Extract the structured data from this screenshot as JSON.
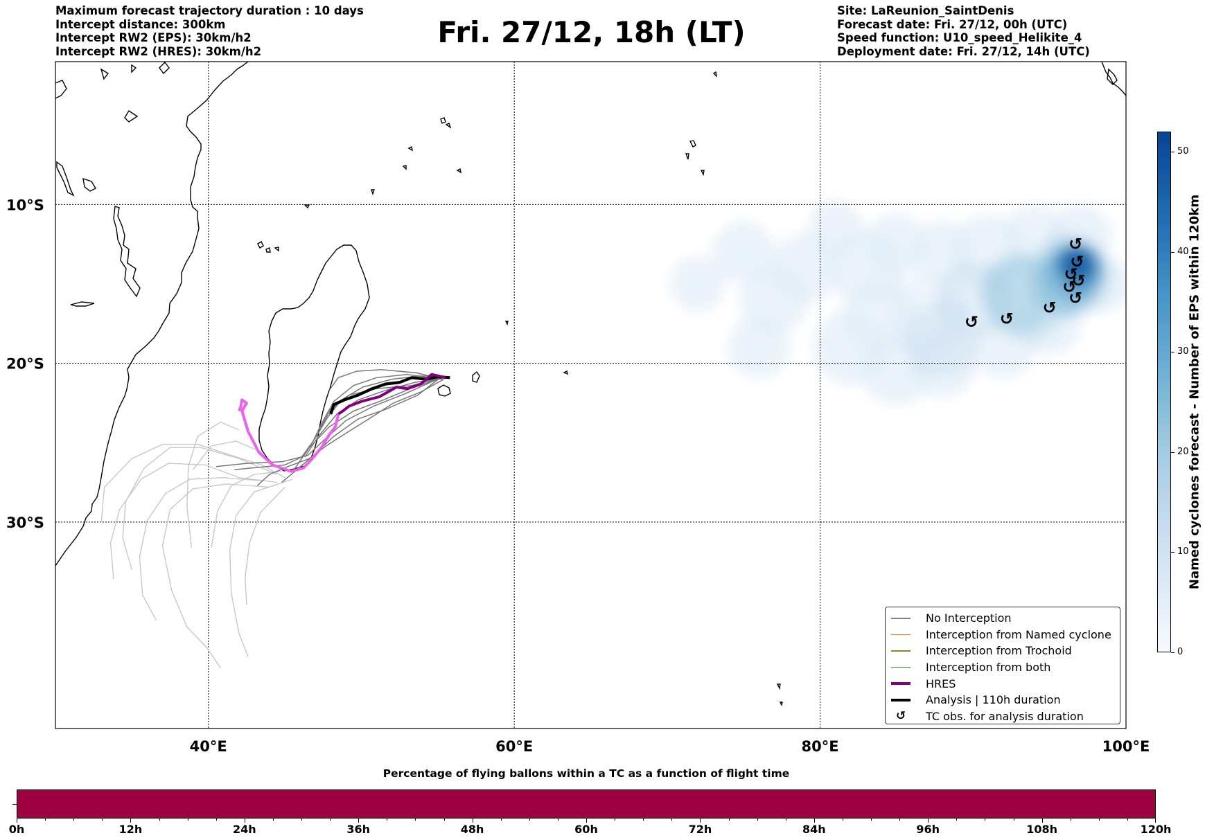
{
  "header": {
    "title": "Fri. 27/12, 18h (LT)",
    "left_info": [
      "Maximum forecast trajectory duration : 10 days",
      "Intercept distance: 300km",
      "Intercept RW2 (EPS):  30km/h2",
      "Intercept RW2 (HRES): 30km/h2"
    ],
    "right_info": [
      "Site: LaReunion_SaintDenis",
      "Forecast date: Fri. 27/12, 00h (UTC)",
      "Speed function: U10_speed_Helikite_4",
      "Deployment date: Fri. 27/12, 14h (UTC)"
    ]
  },
  "map": {
    "lon_range": [
      30,
      100
    ],
    "lat_range": [
      -1,
      -43
    ],
    "lat_labels": [
      "10°S",
      "20°S",
      "30°S"
    ],
    "lon_labels": [
      "40°E",
      "60°E",
      "80°E",
      "100°E"
    ],
    "release_site": {
      "lon": 55.5,
      "lat": -20.9
    },
    "hres_track": [
      [
        55.5,
        -20.9
      ],
      [
        54.6,
        -20.7
      ],
      [
        53.9,
        -21.3
      ],
      [
        53.0,
        -21.6
      ],
      [
        52.3,
        -21.5
      ],
      [
        51.2,
        -22.1
      ],
      [
        50.0,
        -22.4
      ],
      [
        49.2,
        -22.7
      ],
      [
        48.8,
        -23.0
      ],
      [
        48.5,
        -23.2
      ],
      [
        48.3,
        -24.0
      ],
      [
        47.9,
        -24.5
      ],
      [
        47.4,
        -25.3
      ],
      [
        46.8,
        -26.0
      ],
      [
        46.2,
        -26.6
      ],
      [
        45.4,
        -26.8
      ],
      [
        44.2,
        -26.4
      ],
      [
        43.3,
        -25.6
      ],
      [
        42.6,
        -24.3
      ],
      [
        42.2,
        -23.0
      ],
      [
        42.5,
        -22.5
      ],
      [
        42.2,
        -22.3
      ],
      [
        42.1,
        -22.8
      ],
      [
        42.0,
        -23.0
      ]
    ],
    "analysis_track": [
      [
        55.8,
        -20.9
      ],
      [
        55.0,
        -20.85
      ],
      [
        54.2,
        -21.0
      ],
      [
        53.3,
        -20.9
      ],
      [
        52.5,
        -21.2
      ],
      [
        51.6,
        -21.3
      ],
      [
        50.7,
        -21.6
      ],
      [
        49.8,
        -22.0
      ],
      [
        48.9,
        -22.3
      ],
      [
        48.2,
        -22.6
      ],
      [
        48.0,
        -23.2
      ]
    ],
    "eps_tracks_near": [
      [
        [
          55.4,
          -20.9
        ],
        [
          53.5,
          -21.2
        ],
        [
          51.6,
          -21.7
        ],
        [
          49.8,
          -22.3
        ],
        [
          48.4,
          -23.2
        ],
        [
          47.2,
          -24.6
        ],
        [
          46.3,
          -25.9
        ]
      ],
      [
        [
          55.3,
          -20.9
        ],
        [
          53.2,
          -21.6
        ],
        [
          51.2,
          -22.4
        ],
        [
          49.5,
          -23.0
        ],
        [
          47.9,
          -24.0
        ],
        [
          46.6,
          -25.3
        ],
        [
          45.6,
          -26.7
        ]
      ],
      [
        [
          55.2,
          -21.0
        ],
        [
          53.0,
          -20.7
        ],
        [
          51.0,
          -20.9
        ],
        [
          49.5,
          -21.4
        ],
        [
          48.2,
          -22.4
        ],
        [
          47.4,
          -23.8
        ],
        [
          46.8,
          -25.0
        ]
      ],
      [
        [
          55.3,
          -20.8
        ],
        [
          53.7,
          -22.0
        ],
        [
          51.6,
          -22.9
        ],
        [
          49.8,
          -23.5
        ],
        [
          48.2,
          -24.6
        ],
        [
          47.0,
          -25.7
        ],
        [
          45.9,
          -26.6
        ],
        [
          44.8,
          -27.5
        ]
      ],
      [
        [
          55.3,
          -21.0
        ],
        [
          53.6,
          -20.6
        ],
        [
          51.3,
          -20.4
        ],
        [
          49.7,
          -20.5
        ],
        [
          48.5,
          -20.9
        ],
        [
          47.9,
          -21.7
        ]
      ],
      [
        [
          55.4,
          -21.0
        ],
        [
          53.9,
          -21.8
        ],
        [
          52.1,
          -22.5
        ],
        [
          50.5,
          -23.5
        ],
        [
          49.0,
          -24.4
        ],
        [
          47.7,
          -25.2
        ],
        [
          46.6,
          -26.0
        ],
        [
          45.2,
          -26.5
        ],
        [
          44.0,
          -27.0
        ],
        [
          43.2,
          -27.7
        ]
      ],
      [
        [
          55.3,
          -20.9
        ],
        [
          53.3,
          -21.4
        ],
        [
          51.0,
          -21.6
        ],
        [
          49.2,
          -22.0
        ],
        [
          48.0,
          -22.9
        ],
        [
          47.3,
          -24.1
        ]
      ],
      [
        [
          55.4,
          -20.8
        ],
        [
          53.8,
          -20.8
        ],
        [
          52.0,
          -21.0
        ],
        [
          50.1,
          -21.5
        ],
        [
          48.7,
          -22.3
        ],
        [
          47.8,
          -23.4
        ],
        [
          47.0,
          -24.7
        ],
        [
          46.1,
          -25.9
        ],
        [
          45.0,
          -26.4
        ],
        [
          43.8,
          -26.5
        ],
        [
          41.7,
          -26.7
        ]
      ],
      [
        [
          55.2,
          -20.9
        ],
        [
          52.9,
          -21.9
        ],
        [
          50.8,
          -22.7
        ],
        [
          49.0,
          -23.6
        ],
        [
          47.6,
          -24.8
        ],
        [
          46.5,
          -25.8
        ],
        [
          44.8,
          -26.2
        ],
        [
          42.5,
          -26.3
        ],
        [
          40.5,
          -26.5
        ]
      ]
    ],
    "eps_tracks_far": [
      [
        [
          45.0,
          -27.2
        ],
        [
          43.5,
          -26.4
        ],
        [
          41.5,
          -25.8
        ],
        [
          39.3,
          -25.1
        ],
        [
          37.0,
          -25.1
        ],
        [
          35.0,
          -26.0
        ],
        [
          33.2,
          -27.8
        ],
        [
          33.0,
          -30.0
        ]
      ],
      [
        [
          44.5,
          -27.5
        ],
        [
          42.0,
          -27.2
        ],
        [
          39.8,
          -26.4
        ],
        [
          37.4,
          -26.3
        ],
        [
          35.6,
          -27.3
        ],
        [
          34.2,
          -29.2
        ],
        [
          33.6,
          -31.3
        ],
        [
          33.8,
          -33.6
        ]
      ],
      [
        [
          44.0,
          -27.8
        ],
        [
          41.2,
          -27.6
        ],
        [
          39.0,
          -27.9
        ],
        [
          37.5,
          -29.2
        ],
        [
          37.0,
          -31.5
        ],
        [
          37.6,
          -34.3
        ],
        [
          38.6,
          -36.6
        ],
        [
          39.9,
          -37.9
        ],
        [
          40.8,
          -39.2
        ]
      ],
      [
        [
          45.5,
          -27.3
        ],
        [
          43.0,
          -28.1
        ],
        [
          41.8,
          -29.6
        ],
        [
          41.4,
          -31.8
        ],
        [
          41.5,
          -34.5
        ],
        [
          42.0,
          -37.0
        ],
        [
          42.6,
          -38.5
        ]
      ],
      [
        [
          43.5,
          -27.4
        ],
        [
          41.0,
          -27.2
        ],
        [
          38.8,
          -27.3
        ],
        [
          37.2,
          -28.2
        ],
        [
          36.0,
          -29.9
        ],
        [
          35.5,
          -32.2
        ],
        [
          35.7,
          -34.6
        ],
        [
          36.6,
          -36.2
        ]
      ],
      [
        [
          44.5,
          -27.0
        ],
        [
          42.0,
          -26.0
        ],
        [
          39.5,
          -25.3
        ],
        [
          37.5,
          -25.3
        ],
        [
          35.8,
          -26.6
        ],
        [
          34.6,
          -28.7
        ],
        [
          34.4,
          -31.0
        ],
        [
          35.0,
          -33.0
        ]
      ],
      [
        [
          45.0,
          -27.8
        ],
        [
          43.4,
          -29.4
        ],
        [
          42.7,
          -31.3
        ],
        [
          42.4,
          -33.5
        ],
        [
          42.5,
          -35.2
        ]
      ],
      [
        [
          42.0,
          -24.2
        ],
        [
          40.8,
          -23.7
        ],
        [
          39.3,
          -24.6
        ],
        [
          38.7,
          -26.5
        ],
        [
          38.6,
          -29.0
        ],
        [
          38.9,
          -31.6
        ]
      ],
      [
        [
          43.5,
          -25.6
        ],
        [
          41.8,
          -24.9
        ],
        [
          40.2,
          -25.2
        ],
        [
          39.0,
          -26.7
        ]
      ],
      [
        [
          44.8,
          -26.8
        ],
        [
          43.0,
          -27.0
        ],
        [
          41.5,
          -27.7
        ],
        [
          40.6,
          -29.3
        ],
        [
          40.2,
          -31.6
        ]
      ]
    ],
    "tc_obs": [
      [
        96.7,
        -12.5
      ],
      [
        96.8,
        -13.6
      ],
      [
        96.4,
        -14.4
      ],
      [
        96.9,
        -14.8
      ],
      [
        96.3,
        -15.2
      ],
      [
        96.7,
        -15.9
      ],
      [
        95.0,
        -16.5
      ],
      [
        92.2,
        -17.2
      ],
      [
        89.9,
        -17.4
      ]
    ],
    "density_blobs": [
      {
        "lon": 72,
        "lat": -15,
        "r": 40,
        "o": 0.55
      },
      {
        "lon": 75,
        "lat": -13,
        "r": 45,
        "o": 0.55
      },
      {
        "lon": 77,
        "lat": -16,
        "r": 50,
        "o": 0.55
      },
      {
        "lon": 79,
        "lat": -14,
        "r": 50,
        "o": 0.55
      },
      {
        "lon": 76,
        "lat": -19,
        "r": 45,
        "o": 0.55
      },
      {
        "lon": 81,
        "lat": -11.5,
        "r": 40,
        "o": 0.55
      },
      {
        "lon": 83,
        "lat": -14,
        "r": 55,
        "o": 0.55
      },
      {
        "lon": 85,
        "lat": -12.5,
        "r": 45,
        "o": 0.55
      },
      {
        "lon": 82,
        "lat": -19,
        "r": 55,
        "o": 0.55
      },
      {
        "lon": 85,
        "lat": -20.5,
        "r": 50,
        "o": 0.55
      },
      {
        "lon": 88,
        "lat": -20,
        "r": 50,
        "o": 0.55
      },
      {
        "lon": 88,
        "lat": -13,
        "r": 45,
        "o": 0.55
      },
      {
        "lon": 91,
        "lat": -13,
        "r": 55,
        "o": 0.55
      },
      {
        "lon": 94,
        "lat": -12,
        "r": 45,
        "o": 0.55
      },
      {
        "lon": 97,
        "lat": -12,
        "r": 45,
        "o": 0.6
      },
      {
        "lon": 98.5,
        "lat": -15,
        "r": 40,
        "o": 0.6
      },
      {
        "lon": 92,
        "lat": -19,
        "r": 45,
        "o": 0.55
      },
      {
        "lon": 95,
        "lat": -17.5,
        "r": 45,
        "o": 0.6
      },
      {
        "lon": 87,
        "lat": -17,
        "r": 60,
        "o": 0.45
      },
      {
        "lon": 84,
        "lat": -17,
        "r": 55,
        "o": 0.45
      },
      {
        "lon": 90,
        "lat": -16,
        "r": 55,
        "o": 0.45
      },
      {
        "lon": 93,
        "lat": -15.5,
        "r": 55,
        "o": 0.5
      },
      {
        "lon": 96,
        "lat": -15,
        "r": 45,
        "o": 0.55
      },
      {
        "lon": 97,
        "lat": -14,
        "r": 32,
        "o": 0.6
      },
      {
        "lon": 96.6,
        "lat": -13.6,
        "r": 20,
        "o": 0.7
      }
    ]
  },
  "legend": {
    "items": [
      {
        "label": "No Interception",
        "color": "#808080",
        "width": 1.5,
        "type": "line"
      },
      {
        "label": "Interception from Named cyclone",
        "color": "#ff6a22",
        "width": 1.5,
        "type": "line"
      },
      {
        "label": "Interception from Trochoid",
        "color": "#8a8a1e",
        "width": 1.5,
        "type": "line"
      },
      {
        "label": "Interception from both",
        "color": "#2ca02c",
        "width": 1.5,
        "type": "line"
      },
      {
        "label": "HRES",
        "color": "#800080",
        "width": 4,
        "type": "line"
      },
      {
        "label": "Analysis | 110h duration",
        "color": "#000000",
        "width": 4,
        "type": "line"
      },
      {
        "label": "TC obs. for analysis duration",
        "color": "#000000",
        "type": "glyph",
        "glyph": "↺"
      }
    ]
  },
  "colorbar": {
    "title": "Named cyclones forecast - Number of EPS within 120km",
    "ticks": [
      "0",
      "10",
      "20",
      "30",
      "40",
      "50"
    ],
    "tick_values": [
      0,
      10,
      20,
      30,
      40,
      50
    ],
    "max": 52
  },
  "bottom": {
    "title": "Percentage of flying ballons within a TC as a function of flight time",
    "bar_color": "#9e0142",
    "ticks": [
      "0h",
      "12h",
      "24h",
      "36h",
      "48h",
      "60h",
      "72h",
      "84h",
      "96h",
      "108h",
      "120h"
    ],
    "max_hours": 120
  }
}
